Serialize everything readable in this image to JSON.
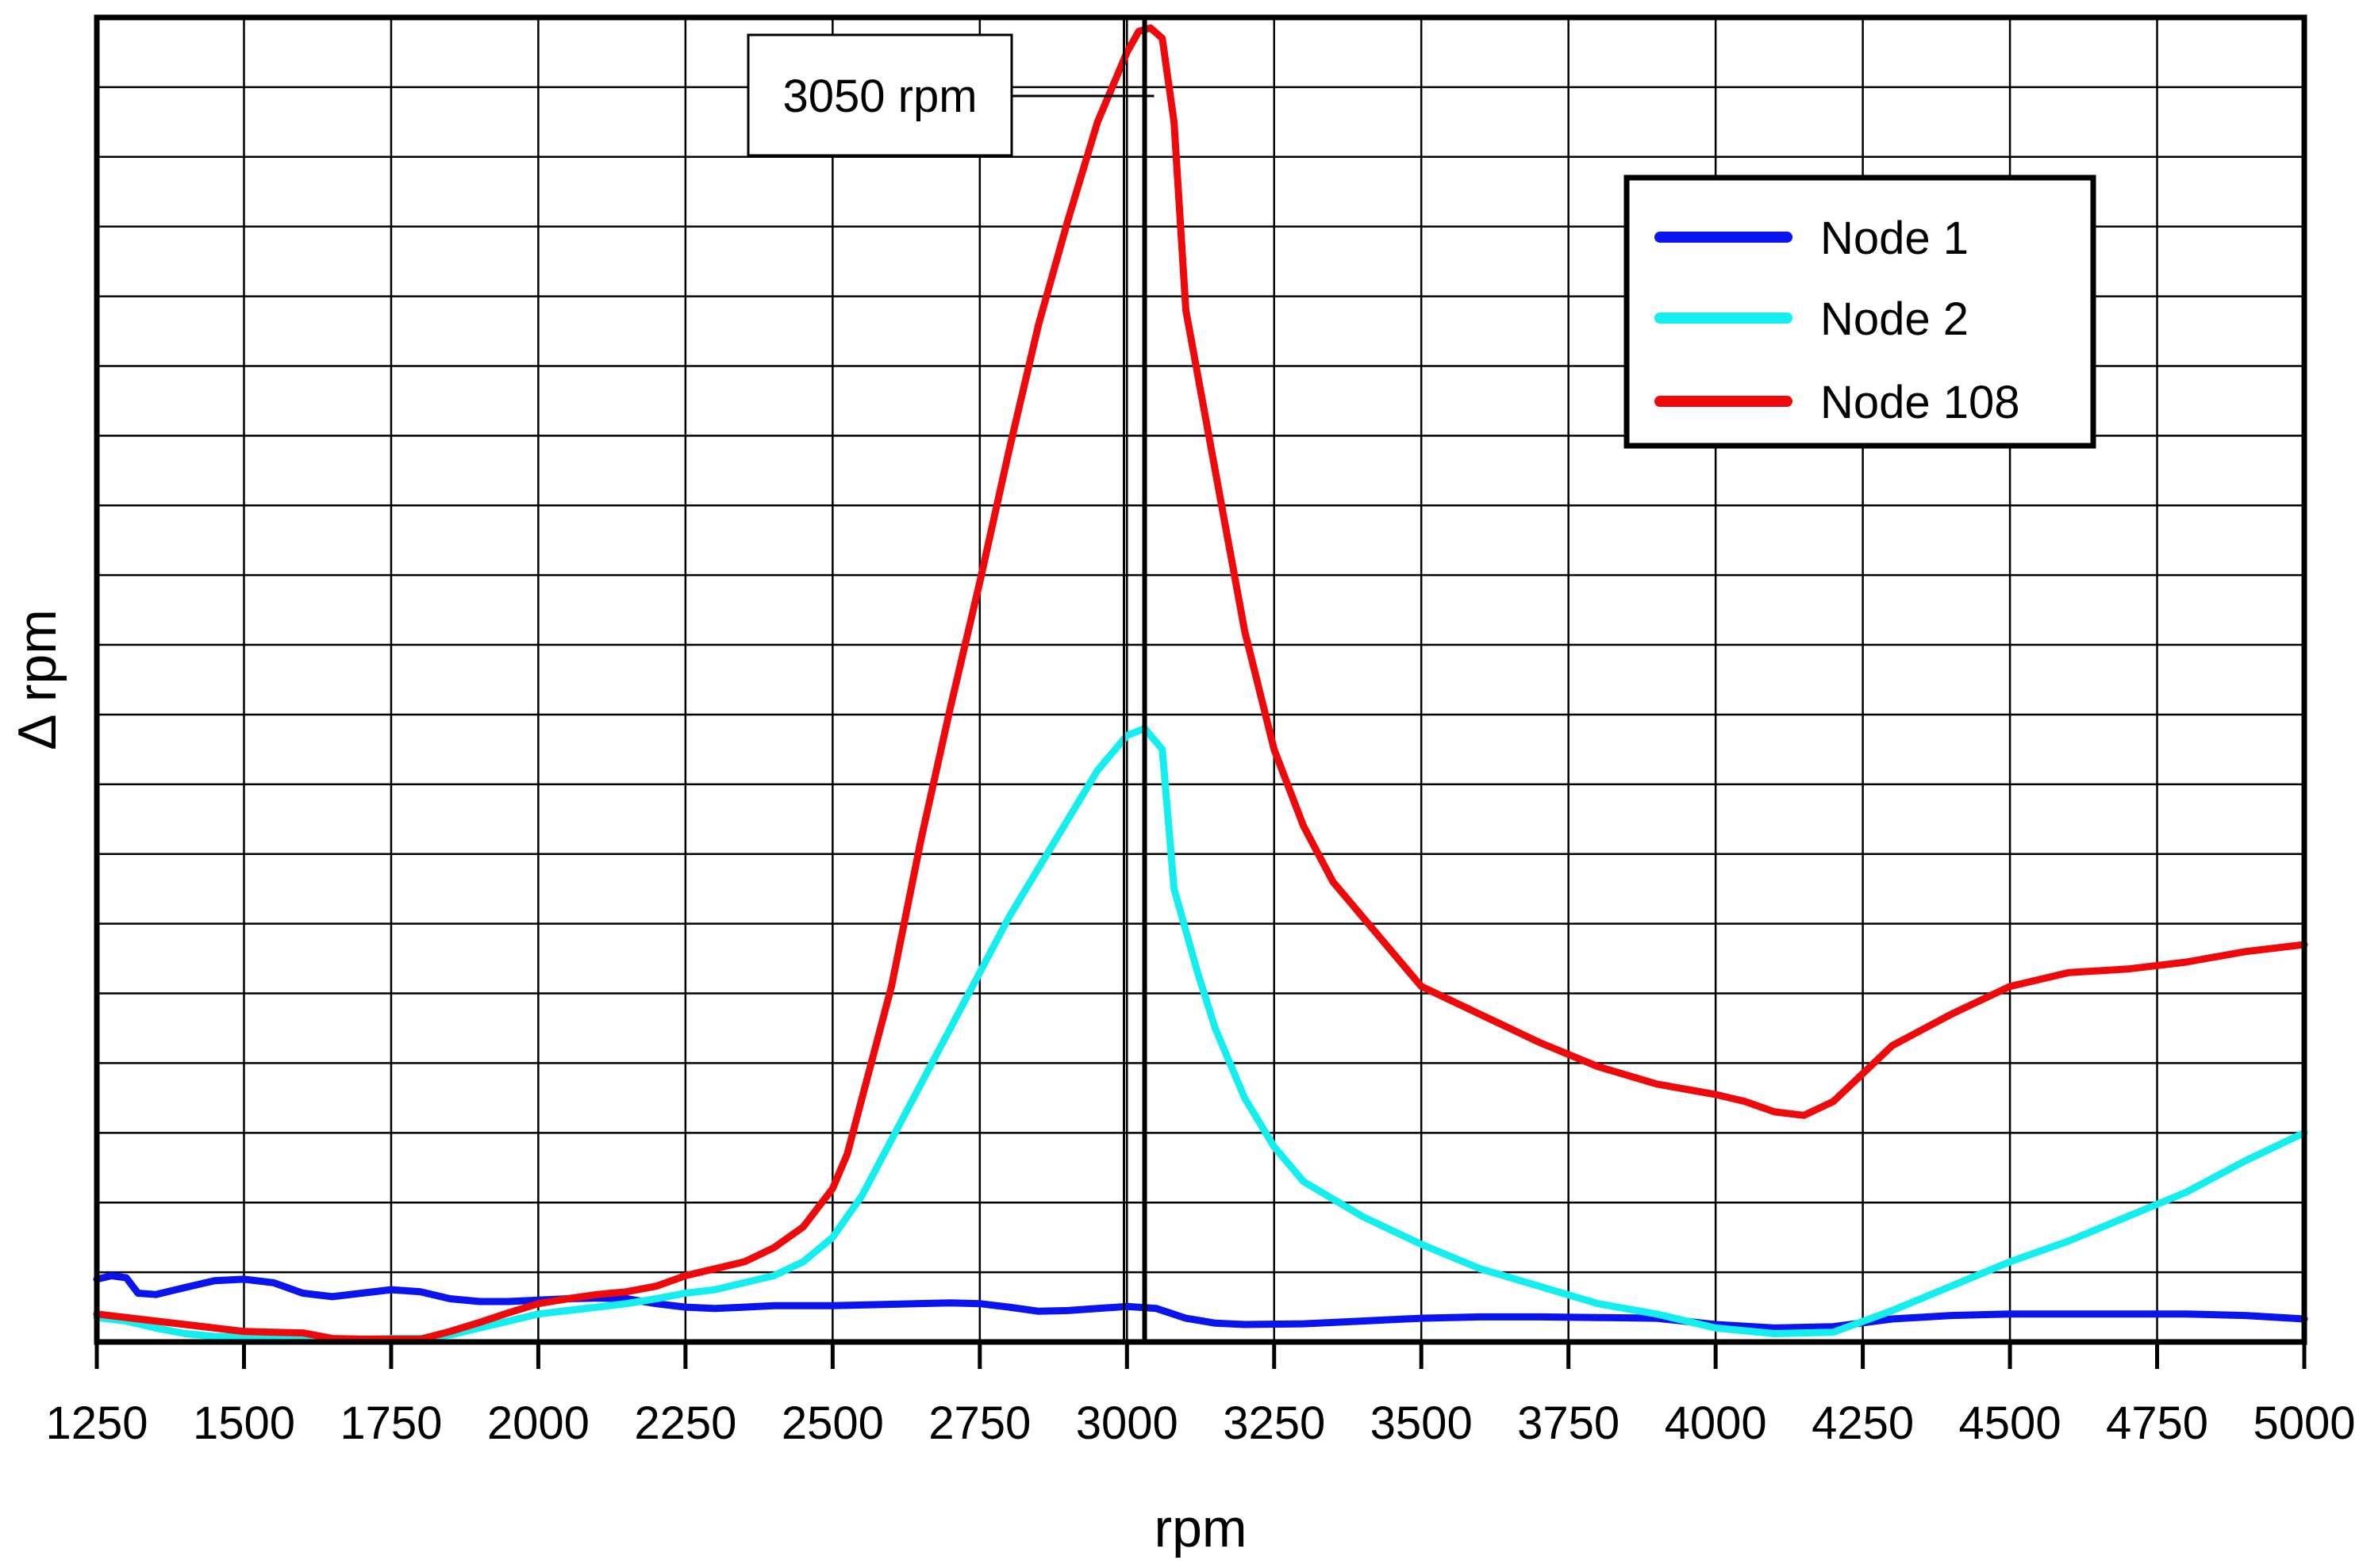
{
  "chart_data": {
    "type": "line",
    "title": "",
    "xlabel": "rpm",
    "ylabel": "Δ rpm",
    "xlim": [
      1250,
      5000
    ],
    "ylim": [
      0,
      19
    ],
    "x_ticks": [
      1250,
      1500,
      1750,
      2000,
      2250,
      2500,
      2750,
      3000,
      3250,
      3500,
      3750,
      4000,
      4250,
      4500,
      4750,
      5000
    ],
    "y_gridlines": 19,
    "grid": true,
    "legend_position": "top-right",
    "annotation": {
      "text": "3050 rpm",
      "x": 3030
    },
    "colors": {
      "node1": "#0a14ee",
      "node2": "#14eeee",
      "node108": "#ee0a0a"
    },
    "series": [
      {
        "name": "Node 1",
        "color": "#0a14ee",
        "points": [
          [
            1250,
            0.9
          ],
          [
            1275,
            0.95
          ],
          [
            1300,
            0.92
          ],
          [
            1320,
            0.7
          ],
          [
            1350,
            0.68
          ],
          [
            1400,
            0.78
          ],
          [
            1450,
            0.88
          ],
          [
            1500,
            0.9
          ],
          [
            1550,
            0.85
          ],
          [
            1600,
            0.7
          ],
          [
            1650,
            0.65
          ],
          [
            1700,
            0.7
          ],
          [
            1750,
            0.75
          ],
          [
            1800,
            0.72
          ],
          [
            1850,
            0.62
          ],
          [
            1900,
            0.58
          ],
          [
            1950,
            0.58
          ],
          [
            2000,
            0.6
          ],
          [
            2050,
            0.62
          ],
          [
            2100,
            0.63
          ],
          [
            2150,
            0.62
          ],
          [
            2200,
            0.55
          ],
          [
            2250,
            0.5
          ],
          [
            2300,
            0.48
          ],
          [
            2350,
            0.5
          ],
          [
            2400,
            0.52
          ],
          [
            2500,
            0.52
          ],
          [
            2600,
            0.54
          ],
          [
            2700,
            0.56
          ],
          [
            2750,
            0.55
          ],
          [
            2800,
            0.5
          ],
          [
            2850,
            0.44
          ],
          [
            2900,
            0.45
          ],
          [
            2950,
            0.48
          ],
          [
            3000,
            0.51
          ],
          [
            3050,
            0.48
          ],
          [
            3100,
            0.34
          ],
          [
            3150,
            0.27
          ],
          [
            3200,
            0.25
          ],
          [
            3300,
            0.26
          ],
          [
            3400,
            0.3
          ],
          [
            3500,
            0.34
          ],
          [
            3600,
            0.36
          ],
          [
            3700,
            0.36
          ],
          [
            3800,
            0.35
          ],
          [
            3900,
            0.34
          ],
          [
            4000,
            0.25
          ],
          [
            4100,
            0.2
          ],
          [
            4200,
            0.22
          ],
          [
            4300,
            0.33
          ],
          [
            4400,
            0.38
          ],
          [
            4500,
            0.4
          ],
          [
            4600,
            0.4
          ],
          [
            4700,
            0.4
          ],
          [
            4800,
            0.4
          ],
          [
            4900,
            0.38
          ],
          [
            5000,
            0.33
          ]
        ]
      },
      {
        "name": "Node 2",
        "color": "#14eeee",
        "points": [
          [
            1250,
            0.35
          ],
          [
            1300,
            0.3
          ],
          [
            1350,
            0.2
          ],
          [
            1400,
            0.12
          ],
          [
            1450,
            0.08
          ],
          [
            1500,
            0.07
          ],
          [
            1550,
            0.06
          ],
          [
            1600,
            0.05
          ],
          [
            1650,
            0.04
          ],
          [
            1700,
            0.04
          ],
          [
            1750,
            0.05
          ],
          [
            1800,
            0.05
          ],
          [
            1850,
            0.1
          ],
          [
            1900,
            0.2
          ],
          [
            1950,
            0.3
          ],
          [
            2000,
            0.4
          ],
          [
            2050,
            0.45
          ],
          [
            2100,
            0.5
          ],
          [
            2150,
            0.55
          ],
          [
            2200,
            0.62
          ],
          [
            2250,
            0.7
          ],
          [
            2300,
            0.75
          ],
          [
            2350,
            0.85
          ],
          [
            2400,
            0.95
          ],
          [
            2450,
            1.15
          ],
          [
            2500,
            1.5
          ],
          [
            2550,
            2.1
          ],
          [
            2600,
            2.9
          ],
          [
            2650,
            3.7
          ],
          [
            2700,
            4.5
          ],
          [
            2750,
            5.3
          ],
          [
            2800,
            6.1
          ],
          [
            2850,
            6.8
          ],
          [
            2900,
            7.5
          ],
          [
            2950,
            8.2
          ],
          [
            3000,
            8.7
          ],
          [
            3030,
            8.8
          ],
          [
            3060,
            8.5
          ],
          [
            3080,
            6.5
          ],
          [
            3120,
            5.3
          ],
          [
            3150,
            4.5
          ],
          [
            3200,
            3.5
          ],
          [
            3250,
            2.8
          ],
          [
            3300,
            2.3
          ],
          [
            3400,
            1.8
          ],
          [
            3500,
            1.4
          ],
          [
            3600,
            1.05
          ],
          [
            3700,
            0.8
          ],
          [
            3800,
            0.55
          ],
          [
            3900,
            0.4
          ],
          [
            4000,
            0.2
          ],
          [
            4100,
            0.12
          ],
          [
            4200,
            0.14
          ],
          [
            4300,
            0.45
          ],
          [
            4400,
            0.8
          ],
          [
            4500,
            1.15
          ],
          [
            4600,
            1.45
          ],
          [
            4700,
            1.8
          ],
          [
            4800,
            2.15
          ],
          [
            4900,
            2.6
          ],
          [
            5000,
            3.0
          ]
        ]
      },
      {
        "name": "Node 108",
        "color": "#ee0a0a",
        "points": [
          [
            1250,
            0.4
          ],
          [
            1300,
            0.35
          ],
          [
            1350,
            0.3
          ],
          [
            1400,
            0.25
          ],
          [
            1450,
            0.2
          ],
          [
            1500,
            0.15
          ],
          [
            1550,
            0.14
          ],
          [
            1600,
            0.13
          ],
          [
            1650,
            0.05
          ],
          [
            1700,
            0.04
          ],
          [
            1750,
            0.04
          ],
          [
            1800,
            0.04
          ],
          [
            1850,
            0.15
          ],
          [
            1900,
            0.28
          ],
          [
            1950,
            0.42
          ],
          [
            2000,
            0.55
          ],
          [
            2050,
            0.62
          ],
          [
            2100,
            0.68
          ],
          [
            2150,
            0.72
          ],
          [
            2200,
            0.8
          ],
          [
            2250,
            0.95
          ],
          [
            2300,
            1.05
          ],
          [
            2350,
            1.15
          ],
          [
            2400,
            1.35
          ],
          [
            2450,
            1.65
          ],
          [
            2500,
            2.2
          ],
          [
            2525,
            2.7
          ],
          [
            2550,
            3.5
          ],
          [
            2600,
            5.1
          ],
          [
            2650,
            7.2
          ],
          [
            2700,
            9.1
          ],
          [
            2750,
            10.9
          ],
          [
            2800,
            12.8
          ],
          [
            2850,
            14.6
          ],
          [
            2900,
            16.1
          ],
          [
            2950,
            17.5
          ],
          [
            3000,
            18.5
          ],
          [
            3020,
            18.8
          ],
          [
            3040,
            18.85
          ],
          [
            3060,
            18.7
          ],
          [
            3080,
            17.5
          ],
          [
            3100,
            14.8
          ],
          [
            3150,
            12.5
          ],
          [
            3200,
            10.2
          ],
          [
            3250,
            8.5
          ],
          [
            3300,
            7.4
          ],
          [
            3350,
            6.6
          ],
          [
            3400,
            6.1
          ],
          [
            3450,
            5.6
          ],
          [
            3500,
            5.1
          ],
          [
            3600,
            4.7
          ],
          [
            3700,
            4.3
          ],
          [
            3800,
            3.95
          ],
          [
            3900,
            3.7
          ],
          [
            4000,
            3.55
          ],
          [
            4050,
            3.45
          ],
          [
            4100,
            3.3
          ],
          [
            4150,
            3.25
          ],
          [
            4200,
            3.45
          ],
          [
            4250,
            3.85
          ],
          [
            4300,
            4.25
          ],
          [
            4400,
            4.7
          ],
          [
            4500,
            5.1
          ],
          [
            4600,
            5.3
          ],
          [
            4700,
            5.35
          ],
          [
            4800,
            5.45
          ],
          [
            4900,
            5.6
          ],
          [
            5000,
            5.7
          ]
        ]
      }
    ]
  }
}
